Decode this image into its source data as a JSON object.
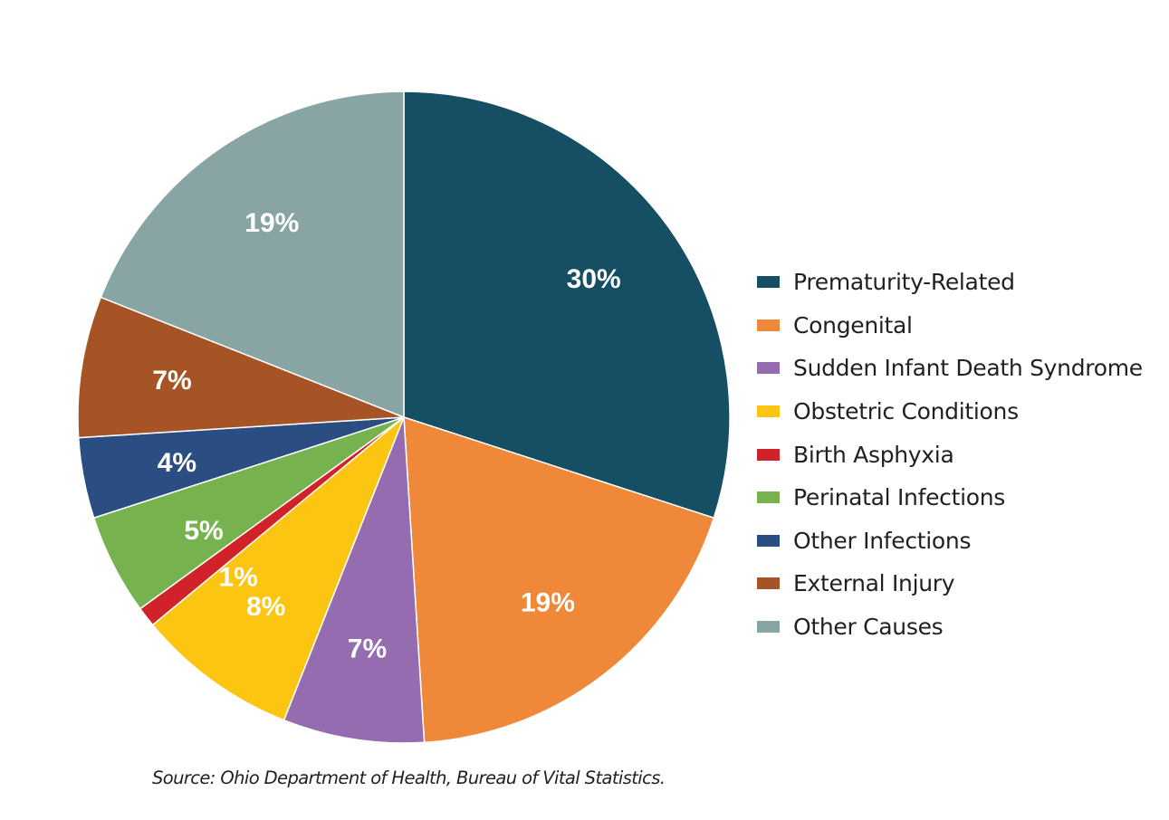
{
  "chart_data": {
    "type": "pie",
    "slices": [
      {
        "label": "Prematurity-Related",
        "value": 30,
        "display": "30%",
        "color": "#164e63"
      },
      {
        "label": "Congenital",
        "value": 19,
        "display": "19%",
        "color": "#f0883a"
      },
      {
        "label": "Sudden Infant Death Syndrome",
        "value": 7,
        "display": "7%",
        "color": "#966cb1"
      },
      {
        "label": "Obstetric Conditions",
        "value": 8,
        "display": "8%",
        "color": "#fcc512"
      },
      {
        "label": "Birth Asphyxia",
        "value": 1,
        "display": "1%",
        "color": "#d02228"
      },
      {
        "label": "Perinatal Infections",
        "value": 5,
        "display": "5%",
        "color": "#76b34f"
      },
      {
        "label": "Other Infections",
        "value": 4,
        "display": "4%",
        "color": "#2a4e82"
      },
      {
        "label": "External Injury",
        "value": 7,
        "display": "7%",
        "color": "#a65426"
      },
      {
        "label": "Other Causes",
        "value": 19,
        "display": "19%",
        "color": "#88a5a4"
      }
    ],
    "start": "12 o'clock",
    "direction": "clockwise",
    "legend_position": "right"
  },
  "source": "Source: Ohio Department of Health, Bureau of Vital Statistics."
}
